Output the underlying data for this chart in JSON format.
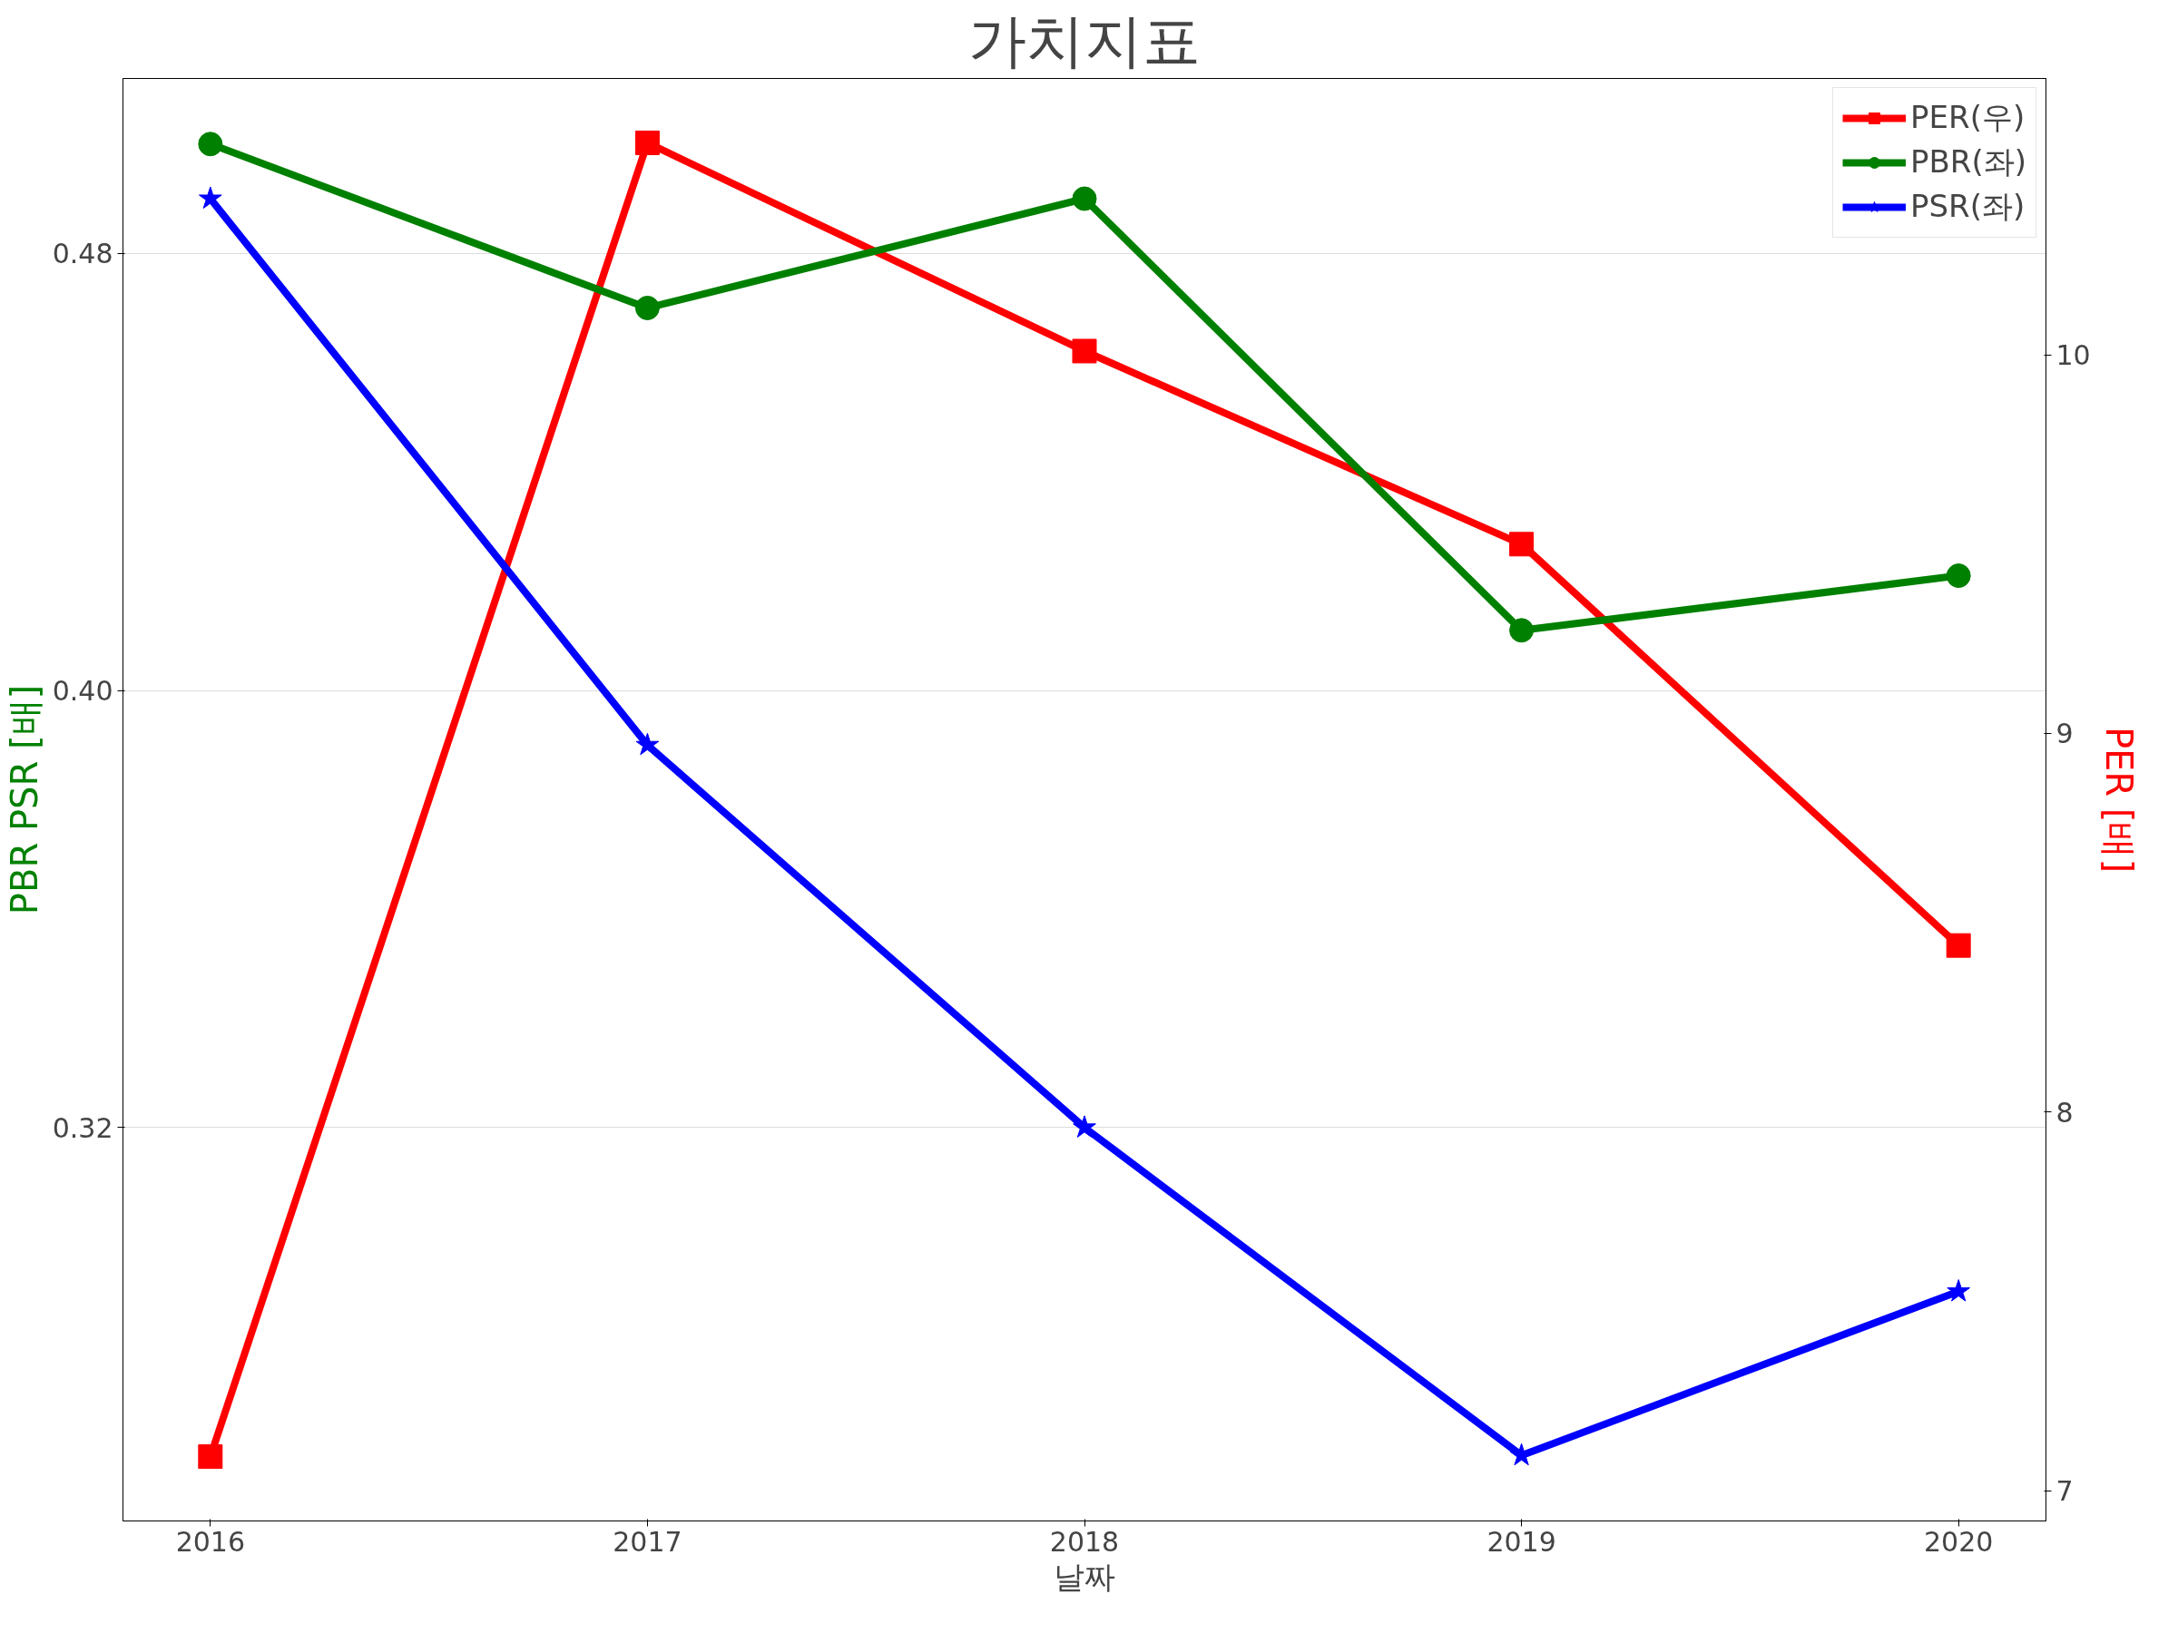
{
  "chart_data": {
    "type": "line",
    "title": "가치지표",
    "xlabel": "날짜",
    "ylabel": "PBR PSR [배]",
    "y2label": "PER [배]",
    "x": [
      2016,
      2017,
      2018,
      2019,
      2020
    ],
    "series": [
      {
        "name": "PER(우)",
        "color": "#ff0000",
        "marker": "square",
        "axis": "y2",
        "values": [
          7.09,
          10.56,
          10.01,
          9.5,
          8.44
        ]
      },
      {
        "name": "PBR(좌)",
        "color": "#008000",
        "marker": "circle",
        "values": [
          0.5,
          0.47,
          0.49,
          0.411,
          0.421
        ]
      },
      {
        "name": "PSR(좌)",
        "color": "#0000ff",
        "marker": "star",
        "values": [
          0.49,
          0.39,
          0.32,
          0.26,
          0.29
        ]
      }
    ],
    "xlim": [
      2015.8,
      2020.2
    ],
    "xticks": [
      2016,
      2017,
      2018,
      2019,
      2020
    ],
    "ylim": [
      0.248,
      0.512
    ],
    "yticks": [
      {
        "value": 0.32,
        "label": "0.32"
      },
      {
        "value": 0.4,
        "label": "0.40"
      },
      {
        "value": 0.48,
        "label": "0.48"
      }
    ],
    "y2lim": [
      6.92,
      10.73
    ],
    "y2ticks": [
      7,
      8,
      9,
      10
    ],
    "grid": "y",
    "legend": "top right",
    "line_style": "solid"
  }
}
